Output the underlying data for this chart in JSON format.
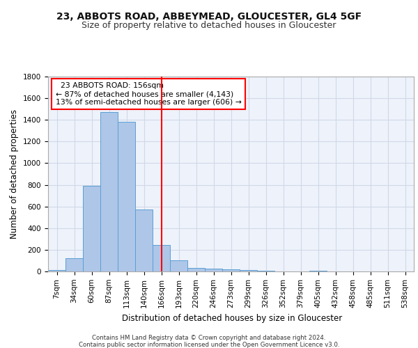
{
  "title1": "23, ABBOTS ROAD, ABBEYMEAD, GLOUCESTER, GL4 5GF",
  "title2": "Size of property relative to detached houses in Gloucester",
  "xlabel": "Distribution of detached houses by size in Gloucester",
  "ylabel": "Number of detached properties",
  "categories": [
    "7sqm",
    "34sqm",
    "60sqm",
    "87sqm",
    "113sqm",
    "140sqm",
    "166sqm",
    "193sqm",
    "220sqm",
    "246sqm",
    "273sqm",
    "299sqm",
    "326sqm",
    "352sqm",
    "379sqm",
    "405sqm",
    "432sqm",
    "458sqm",
    "485sqm",
    "511sqm",
    "538sqm"
  ],
  "values": [
    10,
    125,
    790,
    1470,
    1380,
    570,
    245,
    105,
    35,
    25,
    20,
    15,
    5,
    0,
    0,
    5,
    0,
    0,
    0,
    0,
    0
  ],
  "bar_color": "#aec6e8",
  "bar_edge_color": "#5a9fd4",
  "grid_color": "#d0d8e8",
  "bg_color": "#eef2fa",
  "vline_x": 6.0,
  "vline_color": "red",
  "annotation_line1": "  23 ABBOTS ROAD: 156sqm",
  "annotation_line2": "← 87% of detached houses are smaller (4,143)",
  "annotation_line3": "13% of semi-detached houses are larger (606) →",
  "annotation_box_color": "red",
  "ylim": [
    0,
    1800
  ],
  "yticks": [
    0,
    200,
    400,
    600,
    800,
    1000,
    1200,
    1400,
    1600,
    1800
  ],
  "footer1": "Contains HM Land Registry data © Crown copyright and database right 2024.",
  "footer2": "Contains public sector information licensed under the Open Government Licence v3.0.",
  "title1_fontsize": 10,
  "title2_fontsize": 9,
  "tick_fontsize": 7.5,
  "ylabel_fontsize": 8.5,
  "xlabel_fontsize": 8.5,
  "annotation_fontsize": 7.8,
  "footer_fontsize": 6.2
}
